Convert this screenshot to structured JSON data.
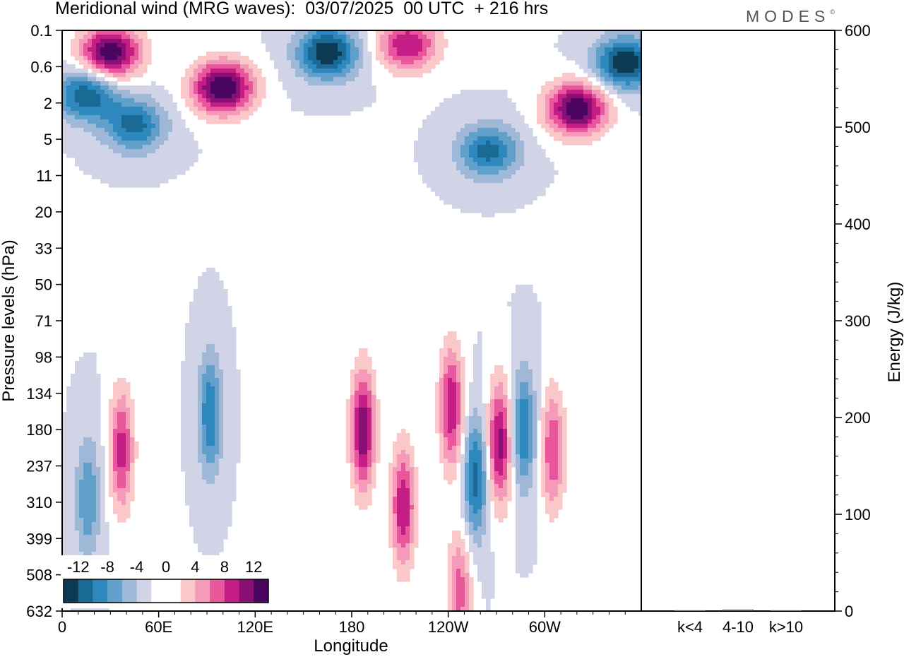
{
  "header": {
    "title": "Meridional wind (MRG waves):  03/07/2025  00 UTC  + 216 hrs",
    "logo": "MODES",
    "logo_mark": "©"
  },
  "chart_data": [
    {
      "type": "heatmap",
      "title": "Meridional wind (MRG waves)",
      "xlabel": "Longitude",
      "ylabel": "Pressure levels (hPa)",
      "x_tick_labels": [
        "0",
        "60E",
        "120E",
        "180",
        "120W",
        "60W"
      ],
      "x_tick_values_deg": [
        0,
        60,
        120,
        180,
        240,
        300
      ],
      "xlim_deg": [
        0,
        360
      ],
      "y_tick_labels": [
        "0.1",
        "0.6",
        "2",
        "5",
        "11",
        "20",
        "33",
        "50",
        "71",
        "98",
        "134",
        "180",
        "237",
        "310",
        "399",
        "508",
        "632"
      ],
      "colorbar": {
        "labels": [
          "-12",
          "-8",
          "-4",
          "0",
          "4",
          "8",
          "12"
        ],
        "levels": [
          -12,
          -8,
          -4,
          0,
          4,
          8,
          12
        ],
        "colors": [
          "#0c3a55",
          "#1a6a96",
          "#2e88bd",
          "#62a0cc",
          "#9fb8d8",
          "#d0d4e6",
          "#ffffff",
          "#ffffff",
          "#fbc8c9",
          "#f59ab8",
          "#e8569c",
          "#c41e86",
          "#8a0f75",
          "#4a0560"
        ]
      },
      "features": [
        {
          "lon": 30,
          "lev": 0.3,
          "value": 14
        },
        {
          "lon": 100,
          "lev": 1.2,
          "value": 15
        },
        {
          "lon": 215,
          "lev": 0.2,
          "value": 10
        },
        {
          "lon": 320,
          "lev": 2.3,
          "value": 14
        },
        {
          "lon": 15,
          "lev": 1.5,
          "value": -10
        },
        {
          "lon": 45,
          "lev": 3.5,
          "value": -9
        },
        {
          "lon": 165,
          "lev": 0.3,
          "value": -12
        },
        {
          "lon": 350,
          "lev": 0.5,
          "value": -12
        },
        {
          "lon": 265,
          "lev": 6.5,
          "value": -9
        },
        {
          "lon": 187,
          "lev": 180,
          "value": 12
        },
        {
          "lon": 212,
          "lev": 320,
          "value": 10
        },
        {
          "lon": 242,
          "lev": 150,
          "value": 10
        },
        {
          "lon": 272,
          "lev": 200,
          "value": 11
        },
        {
          "lon": 305,
          "lev": 210,
          "value": 8
        },
        {
          "lon": 37,
          "lev": 210,
          "value": 9
        },
        {
          "lon": 92,
          "lev": 160,
          "value": -8
        },
        {
          "lon": 257,
          "lev": 260,
          "value": -9
        },
        {
          "lon": 287,
          "lev": 180,
          "value": -8
        },
        {
          "lon": 16,
          "lev": 300,
          "value": -6
        },
        {
          "lon": 247,
          "lev": 560,
          "value": 7
        }
      ]
    },
    {
      "type": "bar",
      "title": "",
      "xlabel": "",
      "ylabel": "Energy (J/kg)",
      "categories": [
        "k<4",
        "4-10",
        "k>10"
      ],
      "values": [
        0.8,
        1.5,
        0.8
      ],
      "ylim": [
        0,
        600
      ],
      "y_tick_labels": [
        "0",
        "100",
        "200",
        "300",
        "400",
        "500",
        "600"
      ],
      "y_tick_values": [
        0,
        100,
        200,
        300,
        400,
        500,
        600
      ]
    }
  ]
}
